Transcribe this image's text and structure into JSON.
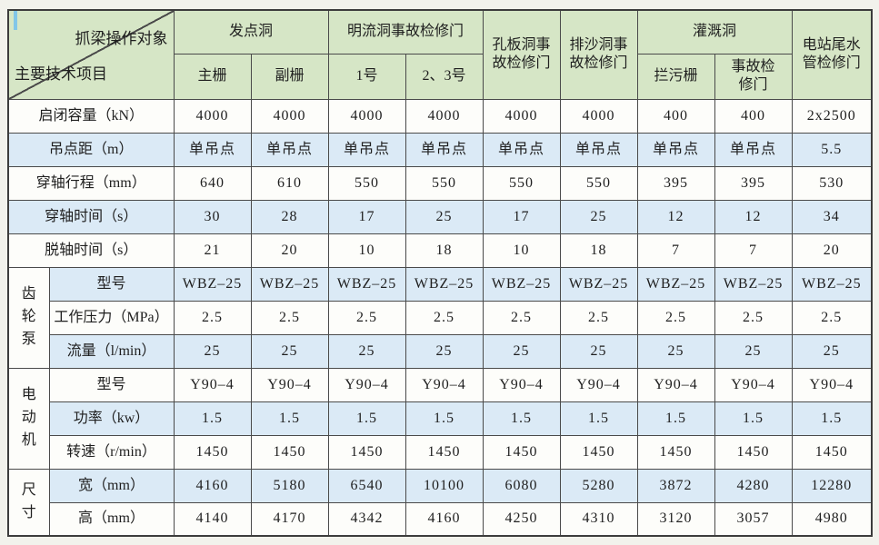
{
  "table": {
    "colors": {
      "header_bg": "#d6e6c6",
      "blue_row_bg": "#dbeaf6",
      "white_row_bg": "#fdfdfa",
      "border_color": "#4a4a4a",
      "page_bg": "#f2f2ec",
      "cursor_mark": "#82c6e8"
    },
    "corner": {
      "top_right": "抓梁操作对象",
      "bottom_left": "主要技术项目"
    },
    "header_groups": [
      {
        "label": "发点洞",
        "children": [
          "主栅",
          "副栅"
        ]
      },
      {
        "label": "明流洞事故检修门",
        "children": [
          "1号",
          "2、3号"
        ]
      },
      {
        "label": "孔板洞事\n故检修门",
        "children": null
      },
      {
        "label": "排沙洞事\n故检修门",
        "children": null
      },
      {
        "label": "灌溉洞",
        "children": [
          "拦污栅",
          "事故检\n修门"
        ]
      },
      {
        "label": "电站尾水\n管检修门",
        "children": null
      }
    ],
    "sections": [
      {
        "group": null,
        "rows": [
          {
            "label": "启闭容量（kN）",
            "shade": false,
            "values": [
              "4000",
              "4000",
              "4000",
              "4000",
              "4000",
              "4000",
              "400",
              "400",
              "2x2500"
            ]
          },
          {
            "label": "吊点距（m）",
            "shade": true,
            "values": [
              "单吊点",
              "单吊点",
              "单吊点",
              "单吊点",
              "单吊点",
              "单吊点",
              "单吊点",
              "单吊点",
              "5.5"
            ]
          },
          {
            "label": "穿轴行程（mm）",
            "shade": false,
            "values": [
              "640",
              "610",
              "550",
              "550",
              "550",
              "550",
              "395",
              "395",
              "530"
            ]
          },
          {
            "label": "穿轴时间（s）",
            "shade": true,
            "values": [
              "30",
              "28",
              "17",
              "25",
              "17",
              "25",
              "12",
              "12",
              "34"
            ]
          },
          {
            "label": "脱轴时间（s）",
            "shade": false,
            "values": [
              "21",
              "20",
              "10",
              "18",
              "10",
              "18",
              "7",
              "7",
              "20"
            ]
          }
        ]
      },
      {
        "group": "齿轮泵",
        "rows": [
          {
            "label": "型号",
            "shade": true,
            "values": [
              "WBZ–25",
              "WBZ–25",
              "WBZ–25",
              "WBZ–25",
              "WBZ–25",
              "WBZ–25",
              "WBZ–25",
              "WBZ–25",
              "WBZ–25"
            ]
          },
          {
            "label": "工作压力（MPa）",
            "shade": false,
            "values": [
              "2.5",
              "2.5",
              "2.5",
              "2.5",
              "2.5",
              "2.5",
              "2.5",
              "2.5",
              "2.5"
            ]
          },
          {
            "label": "流量（l/min）",
            "shade": true,
            "values": [
              "25",
              "25",
              "25",
              "25",
              "25",
              "25",
              "25",
              "25",
              "25"
            ]
          }
        ]
      },
      {
        "group": "电动机",
        "rows": [
          {
            "label": "型号",
            "shade": false,
            "values": [
              "Y90–4",
              "Y90–4",
              "Y90–4",
              "Y90–4",
              "Y90–4",
              "Y90–4",
              "Y90–4",
              "Y90–4",
              "Y90–4"
            ]
          },
          {
            "label": "功率（kw）",
            "shade": true,
            "values": [
              "1.5",
              "1.5",
              "1.5",
              "1.5",
              "1.5",
              "1.5",
              "1.5",
              "1.5",
              "1.5"
            ]
          },
          {
            "label": "转速（r/min）",
            "shade": false,
            "values": [
              "1450",
              "1450",
              "1450",
              "1450",
              "1450",
              "1450",
              "1450",
              "1450",
              "1450"
            ]
          }
        ]
      },
      {
        "group": "尺寸",
        "rows": [
          {
            "label": "宽（mm）",
            "shade": true,
            "values": [
              "4160",
              "5180",
              "6540",
              "10100",
              "6080",
              "5280",
              "3872",
              "4280",
              "12280"
            ]
          },
          {
            "label": "高（mm）",
            "shade": false,
            "values": [
              "4140",
              "4170",
              "4342",
              "4160",
              "4250",
              "4310",
              "3120",
              "3057",
              "4980"
            ]
          }
        ]
      }
    ]
  }
}
